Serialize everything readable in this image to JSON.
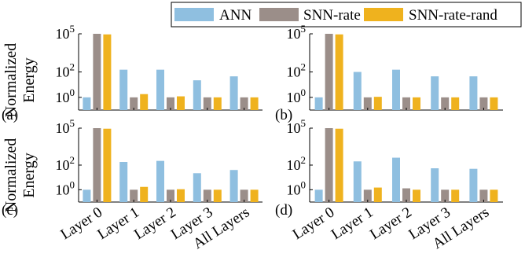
{
  "legend": {
    "placement": "top-right",
    "entries": [
      {
        "label": "ANN",
        "color": "#8fbfe0"
      },
      {
        "label": "SNN-rate",
        "color": "#9b8e89"
      },
      {
        "label": "SNN-rate-rand",
        "color": "#efb21e"
      }
    ]
  },
  "ylabel": [
    "Normalized",
    "Energy"
  ],
  "chart_data": [
    {
      "type": "bar",
      "panel_label": "(a)",
      "yscale": "log",
      "ylim": [
        0.1,
        100000
      ],
      "yticks": [
        {
          "label": "10",
          "sup": "0"
        },
        {
          "label": "10",
          "sup": "2"
        },
        {
          "label": "10",
          "sup": "5"
        }
      ],
      "categories": [
        "Layer 0",
        "Layer 1",
        "Layer 2",
        "Layer 3",
        "All Layers"
      ],
      "series": [
        {
          "name": "ANN",
          "values": [
            1,
            150,
            150,
            22,
            45
          ]
        },
        {
          "name": "SNN-rate",
          "values": [
            100000,
            1,
            1,
            1,
            1
          ]
        },
        {
          "name": "SNN-rate-rand",
          "values": [
            90000,
            1.8,
            1.2,
            1,
            1
          ]
        }
      ]
    },
    {
      "type": "bar",
      "panel_label": "(b)",
      "yscale": "log",
      "ylim": [
        0.1,
        100000
      ],
      "yticks": [
        {
          "label": "10",
          "sup": "0"
        },
        {
          "label": "10",
          "sup": "2"
        },
        {
          "label": "10",
          "sup": "5"
        }
      ],
      "categories": [
        "Layer 0",
        "Layer 1",
        "Layer 2",
        "Layer 3",
        "All Layers"
      ],
      "series": [
        {
          "name": "ANN",
          "values": [
            1,
            100,
            150,
            45,
            45
          ]
        },
        {
          "name": "SNN-rate",
          "values": [
            100000,
            1,
            1,
            1,
            1
          ]
        },
        {
          "name": "SNN-rate-rand",
          "values": [
            90000,
            1.1,
            1,
            1,
            1
          ]
        }
      ]
    },
    {
      "type": "bar",
      "panel_label": "(c)",
      "yscale": "log",
      "ylim": [
        0.1,
        100000
      ],
      "yticks": [
        {
          "label": "10",
          "sup": "0"
        },
        {
          "label": "10",
          "sup": "2"
        },
        {
          "label": "10",
          "sup": "5"
        }
      ],
      "categories": [
        "Layer 0",
        "Layer 1",
        "Layer 2",
        "Layer 3",
        "All Layers"
      ],
      "series": [
        {
          "name": "ANN",
          "values": [
            1,
            180,
            220,
            22,
            40
          ]
        },
        {
          "name": "SNN-rate",
          "values": [
            100000,
            1,
            1,
            1,
            1
          ]
        },
        {
          "name": "SNN-rate-rand",
          "values": [
            90000,
            1.7,
            1.1,
            1,
            1
          ]
        }
      ]
    },
    {
      "type": "bar",
      "panel_label": "(d)",
      "yscale": "log",
      "ylim": [
        0.1,
        100000
      ],
      "yticks": [
        {
          "label": "10",
          "sup": "0"
        },
        {
          "label": "10",
          "sup": "2"
        },
        {
          "label": "10",
          "sup": "5"
        }
      ],
      "categories": [
        "Layer 0",
        "Layer 1",
        "Layer 2",
        "Layer 3",
        "All Layers"
      ],
      "series": [
        {
          "name": "ANN",
          "values": [
            1,
            200,
            400,
            55,
            50
          ]
        },
        {
          "name": "SNN-rate",
          "values": [
            100000,
            1,
            1.3,
            1,
            1
          ]
        },
        {
          "name": "SNN-rate-rand",
          "values": [
            90000,
            1.5,
            1,
            1,
            1
          ]
        }
      ]
    }
  ]
}
